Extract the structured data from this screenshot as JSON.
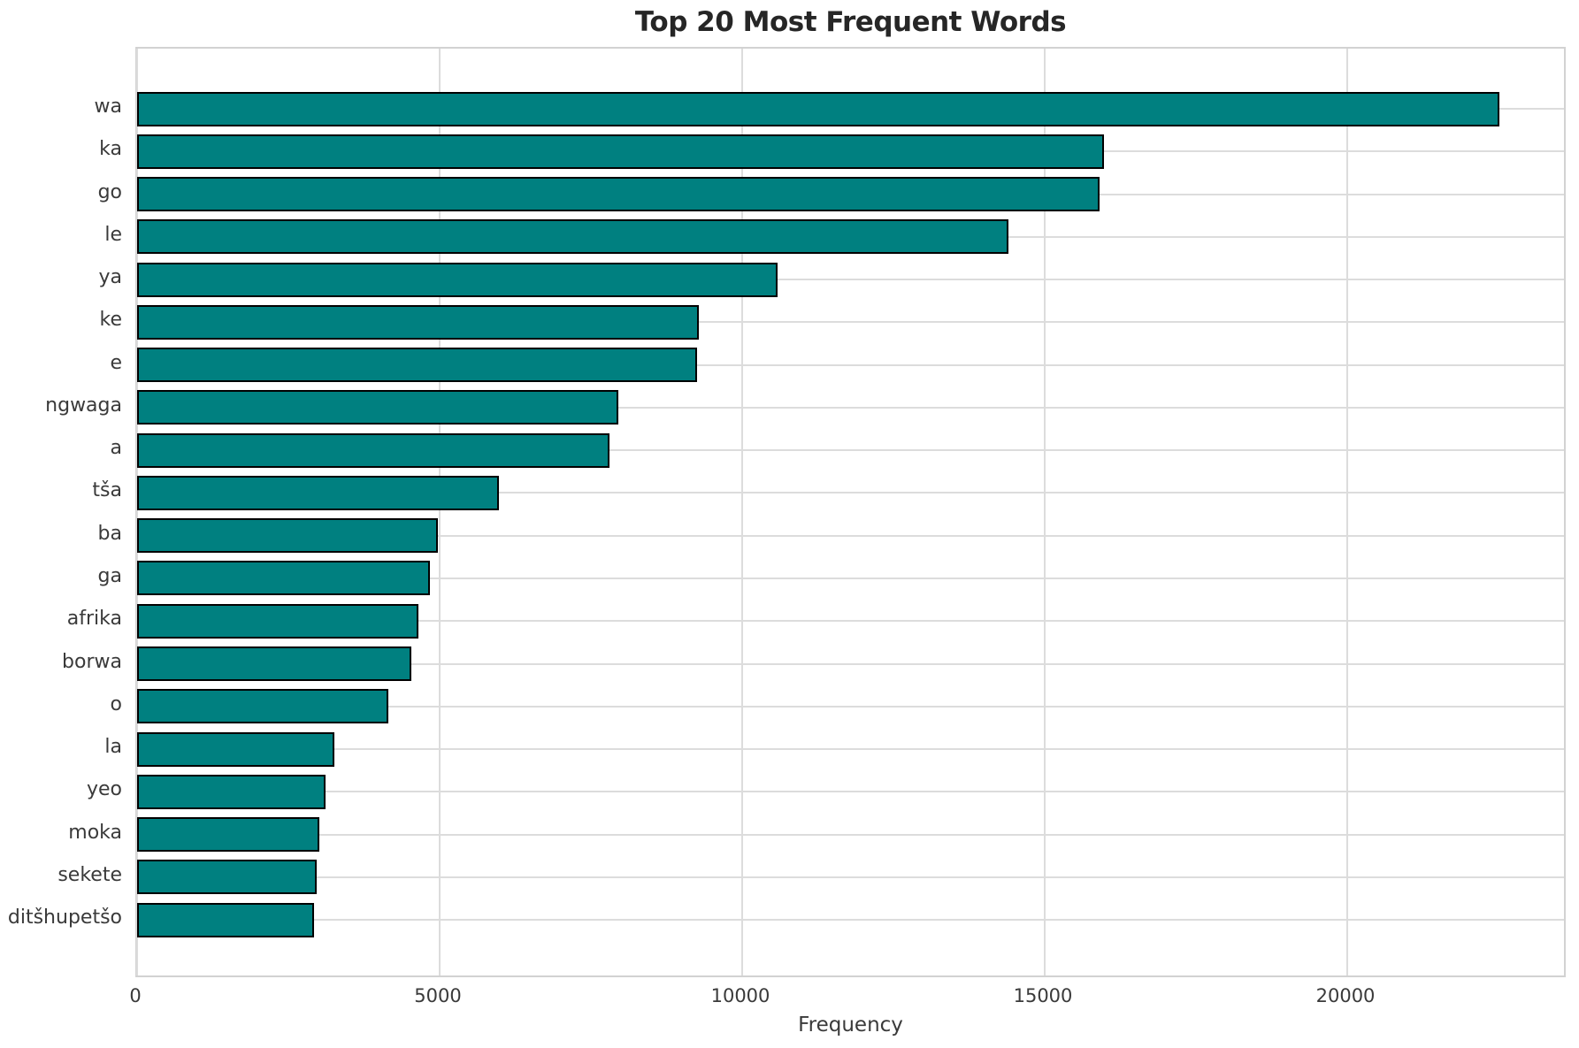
{
  "chart_data": {
    "type": "bar",
    "orientation": "horizontal",
    "title": "Top 20 Most Frequent Words",
    "xlabel": "Frequency",
    "ylabel": "",
    "categories": [
      "wa",
      "ka",
      "go",
      "le",
      "ya",
      "ke",
      "e",
      "ngwaga",
      "a",
      "tša",
      "ba",
      "ga",
      "afrika",
      "borwa",
      "o",
      "la",
      "yeo",
      "moka",
      "sekete",
      "ditšhupetšo"
    ],
    "values": [
      22510,
      15980,
      15910,
      14400,
      10590,
      9280,
      9250,
      7950,
      7810,
      5980,
      4970,
      4840,
      4650,
      4530,
      4150,
      3260,
      3110,
      3010,
      2970,
      2920
    ],
    "xticks": [
      0,
      5000,
      10000,
      15000,
      20000
    ],
    "xlim": [
      0,
      23640
    ],
    "grid": true,
    "legend_position": "none",
    "colors": {
      "bar_fill": "#008080",
      "bar_edge": "#000000",
      "grid_line": "#dcdcdc",
      "spine": "#d2d2d2",
      "text": "#3a3a3a",
      "title_text": "#262626"
    }
  }
}
